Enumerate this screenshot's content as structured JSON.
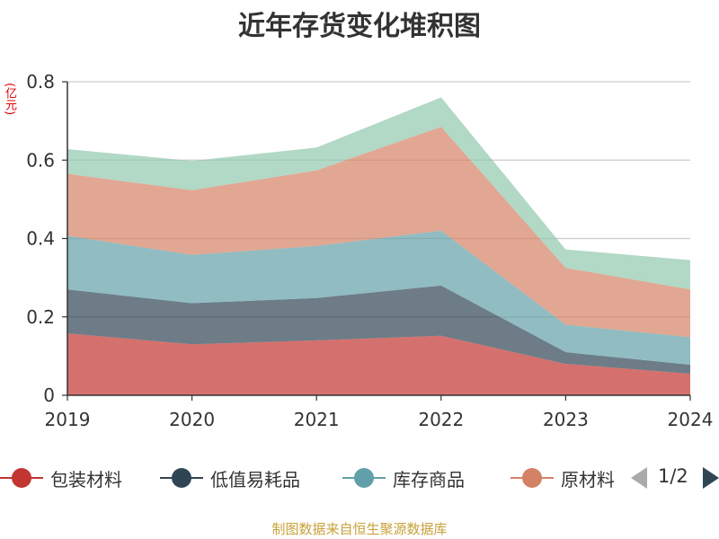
{
  "colors": {
    "series": [
      "#c23531",
      "#2f4554",
      "#61a0a8",
      "#d48265",
      "#91c7ae"
    ],
    "source_text": "#c8a13a",
    "unit": "#e00000",
    "pager_active": "#2f4554",
    "pager_inactive": "#aaaaaa"
  },
  "legend": {
    "visible_items": [
      "包装材料",
      "低值易耗品",
      "库存商品",
      "原材料"
    ],
    "page": "1/2"
  },
  "source_text": "制图数据来自恒生聚源数据库",
  "chart_data": {
    "type": "area",
    "stacked": true,
    "title": "近年存货变化堆积图",
    "unit": "(亿元)",
    "x": [
      "2019",
      "2020",
      "2021",
      "2022",
      "2023",
      "2024"
    ],
    "ylim": [
      0,
      0.8
    ],
    "yticks": [
      0,
      0.2,
      0.4,
      0.6,
      0.8
    ],
    "ytick_labels": [
      "0",
      "0.2",
      "0.4",
      "0.6",
      "0.8"
    ],
    "grid": true,
    "legend_position": "bottom",
    "series": [
      {
        "name": "包装材料",
        "values": [
          0.158,
          0.13,
          0.14,
          0.152,
          0.08,
          0.055
        ]
      },
      {
        "name": "低值易耗品",
        "values": [
          0.112,
          0.105,
          0.108,
          0.128,
          0.03,
          0.023
        ]
      },
      {
        "name": "库存商品",
        "values": [
          0.137,
          0.123,
          0.133,
          0.14,
          0.07,
          0.07
        ]
      },
      {
        "name": "原材料",
        "values": [
          0.158,
          0.165,
          0.193,
          0.265,
          0.145,
          0.122
        ]
      },
      {
        "values": [
          0.063,
          0.075,
          0.058,
          0.075,
          0.047,
          0.075
        ]
      }
    ]
  }
}
